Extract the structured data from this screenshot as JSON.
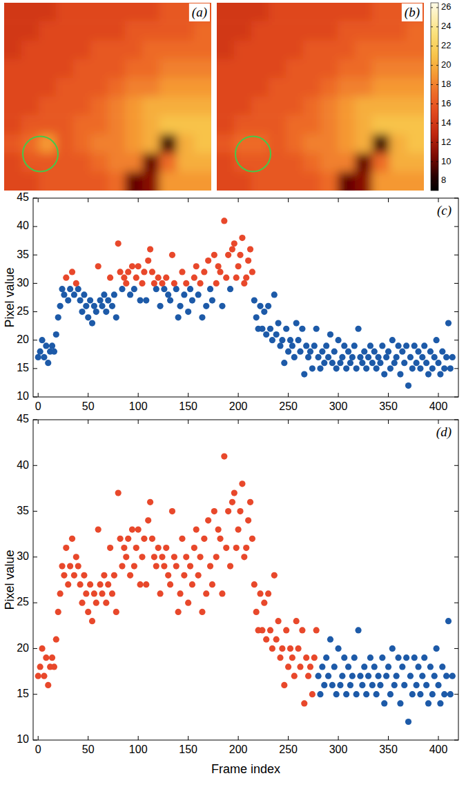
{
  "chart_data": [
    {
      "type": "heatmap",
      "label": "(a)",
      "cells": [
        [
          14,
          14,
          14,
          15,
          15,
          15,
          15,
          15,
          15,
          16,
          16,
          16
        ],
        [
          14,
          14,
          15,
          15,
          15,
          15,
          15,
          16,
          16,
          16,
          16,
          17
        ],
        [
          14,
          15,
          15,
          15,
          15,
          16,
          16,
          16,
          17,
          17,
          17,
          17
        ],
        [
          15,
          15,
          15,
          15,
          16,
          16,
          16,
          17,
          17,
          18,
          18,
          18
        ],
        [
          15,
          15,
          15,
          16,
          16,
          16,
          17,
          18,
          18,
          19,
          19,
          19
        ],
        [
          15,
          15,
          16,
          16,
          16,
          17,
          18,
          19,
          20,
          20,
          20,
          20
        ],
        [
          15,
          16,
          16,
          16,
          17,
          17,
          18,
          19,
          20,
          21,
          21,
          21
        ],
        [
          16,
          17,
          19,
          16,
          17,
          18,
          18,
          19,
          20,
          9,
          20,
          21
        ],
        [
          15,
          16,
          16,
          16,
          16,
          17,
          18,
          18,
          10,
          17,
          20,
          20
        ],
        [
          15,
          15,
          16,
          16,
          16,
          16,
          17,
          10,
          11,
          19,
          19,
          19
        ]
      ]
    },
    {
      "type": "heatmap",
      "label": "(b)",
      "cells": [
        [
          14,
          14,
          14,
          15,
          15,
          15,
          15,
          15,
          15,
          16,
          16,
          16
        ],
        [
          14,
          14,
          15,
          15,
          15,
          15,
          15,
          16,
          16,
          16,
          16,
          17
        ],
        [
          14,
          15,
          15,
          15,
          15,
          16,
          16,
          16,
          17,
          17,
          17,
          17
        ],
        [
          15,
          15,
          15,
          15,
          16,
          16,
          16,
          17,
          17,
          18,
          18,
          18
        ],
        [
          15,
          15,
          15,
          16,
          16,
          16,
          17,
          18,
          18,
          19,
          19,
          19
        ],
        [
          15,
          15,
          16,
          16,
          16,
          17,
          18,
          19,
          20,
          20,
          20,
          20
        ],
        [
          15,
          16,
          16,
          16,
          17,
          17,
          18,
          19,
          20,
          21,
          21,
          21
        ],
        [
          16,
          17,
          17,
          16,
          17,
          18,
          18,
          19,
          20,
          9,
          20,
          21
        ],
        [
          15,
          16,
          16,
          16,
          16,
          17,
          18,
          18,
          10,
          17,
          20,
          20
        ],
        [
          15,
          15,
          16,
          16,
          16,
          16,
          17,
          10,
          11,
          19,
          19,
          19
        ]
      ],
      "color_range": [
        7,
        26.5
      ],
      "color_ticks": [
        8,
        10,
        12,
        14,
        16,
        18,
        20,
        22,
        24,
        26
      ]
    },
    {
      "type": "scatter",
      "label": "(c)",
      "y_label": "Pixel value",
      "xlim": [
        -5,
        420
      ],
      "ylim": [
        10,
        45
      ],
      "xticks": [
        0,
        50,
        100,
        150,
        200,
        250,
        300,
        350,
        400
      ],
      "yticks": [
        10,
        15,
        20,
        25,
        30,
        35,
        40,
        45
      ],
      "series": [
        {
          "color": "#1d5aa8",
          "marker": "circle",
          "x": [
            0,
            2,
            4,
            6,
            8,
            10,
            12,
            14,
            16,
            18,
            20,
            22,
            24,
            26,
            30,
            32,
            36,
            40,
            42,
            44,
            46,
            48,
            50,
            52,
            54,
            56,
            58,
            62,
            64,
            66,
            68,
            70,
            74,
            76,
            78,
            84,
            92,
            96,
            102,
            108,
            118,
            122,
            126,
            130,
            132,
            138,
            140,
            142,
            146,
            150,
            152,
            154,
            160,
            164,
            168,
            172,
            174,
            184,
            192,
            216,
            218,
            220,
            222,
            224,
            226,
            228,
            230,
            232,
            234,
            236,
            238,
            240,
            242,
            244,
            246,
            248,
            250,
            252,
            254,
            256,
            258,
            260,
            262,
            264,
            266,
            268,
            270,
            272,
            274,
            276,
            278,
            280,
            282,
            284,
            286,
            288,
            290,
            292,
            294,
            296,
            298,
            300,
            302,
            304,
            306,
            308,
            310,
            312,
            314,
            316,
            318,
            320,
            322,
            324,
            326,
            328,
            330,
            332,
            334,
            336,
            338,
            340,
            342,
            344,
            346,
            348,
            350,
            352,
            354,
            356,
            358,
            360,
            362,
            364,
            366,
            368,
            370,
            372,
            374,
            376,
            378,
            380,
            382,
            384,
            386,
            388,
            390,
            392,
            394,
            396,
            398,
            400,
            402,
            404,
            406,
            408,
            410,
            412,
            414
          ],
          "values": [
            17,
            18,
            20,
            17,
            19,
            16,
            18,
            19,
            18,
            21,
            24,
            26,
            29,
            28,
            27,
            29,
            28,
            29,
            27,
            25,
            28,
            26,
            24,
            27,
            23,
            26,
            25,
            27,
            26,
            28,
            25,
            27,
            26,
            28,
            24,
            29,
            28,
            29,
            27,
            27,
            29,
            26,
            29,
            28,
            27,
            29,
            24,
            26,
            28,
            25,
            29,
            27,
            28,
            24,
            26,
            29,
            27,
            26,
            29,
            27,
            24,
            22,
            26,
            22,
            25,
            21,
            26,
            22,
            20,
            28,
            21,
            23,
            19,
            20,
            16,
            22,
            18,
            20,
            19,
            17,
            23,
            20,
            18,
            22,
            14,
            19,
            17,
            18,
            15,
            19,
            22,
            17,
            15,
            18,
            16,
            19,
            17,
            21,
            16,
            18,
            15,
            20,
            16,
            17,
            19,
            15,
            18,
            16,
            17,
            19,
            15,
            22,
            17,
            16,
            18,
            15,
            17,
            19,
            16,
            18,
            15,
            17,
            16,
            19,
            14,
            17,
            18,
            15,
            20,
            16,
            17,
            19,
            14,
            18,
            16,
            19,
            12,
            17,
            15,
            19,
            16,
            18,
            15,
            17,
            19,
            16,
            14,
            18,
            15,
            17,
            20,
            16,
            14,
            18,
            15,
            17,
            23,
            15,
            17
          ]
        },
        {
          "color": "#e8482b",
          "marker": "circle",
          "x": [
            28,
            34,
            38,
            60,
            72,
            80,
            82,
            86,
            88,
            90,
            94,
            98,
            100,
            104,
            106,
            110,
            112,
            114,
            116,
            120,
            124,
            128,
            134,
            136,
            144,
            148,
            156,
            158,
            162,
            166,
            170,
            176,
            178,
            180,
            182,
            186,
            188,
            190,
            194,
            196,
            198,
            200,
            202,
            204,
            206,
            208,
            210,
            212,
            214
          ],
          "values": [
            31,
            32,
            30,
            33,
            31,
            37,
            32,
            31,
            30,
            32,
            33,
            31,
            33,
            30,
            32,
            34,
            36,
            32,
            30,
            31,
            30,
            31,
            35,
            30,
            32,
            30,
            31,
            33,
            30,
            32,
            34,
            35,
            30,
            33,
            32,
            41,
            31,
            35,
            36,
            37,
            31,
            33,
            35,
            38,
            30,
            31,
            34,
            36,
            32
          ]
        }
      ]
    },
    {
      "type": "scatter",
      "label": "(d)",
      "y_label": "Pixel value",
      "x_label": "Frame index",
      "xlim": [
        -5,
        420
      ],
      "ylim": [
        10,
        45
      ],
      "xticks": [
        0,
        50,
        100,
        150,
        200,
        250,
        300,
        350,
        400
      ],
      "yticks": [
        10,
        15,
        20,
        25,
        30,
        35,
        40,
        45
      ],
      "series": [
        {
          "color": "#e8482b",
          "marker": "circle",
          "x": [
            0,
            2,
            4,
            6,
            8,
            10,
            12,
            14,
            16,
            18,
            20,
            22,
            24,
            26,
            28,
            30,
            32,
            34,
            36,
            38,
            40,
            42,
            44,
            46,
            48,
            50,
            52,
            54,
            56,
            58,
            60,
            62,
            64,
            66,
            68,
            70,
            72,
            74,
            76,
            78,
            80,
            82,
            84,
            86,
            88,
            90,
            92,
            94,
            96,
            98,
            100,
            102,
            104,
            106,
            108,
            110,
            112,
            114,
            116,
            118,
            120,
            122,
            124,
            126,
            128,
            130,
            132,
            134,
            136,
            138,
            140,
            142,
            144,
            146,
            148,
            150,
            152,
            154,
            156,
            158,
            160,
            162,
            164,
            166,
            168,
            170,
            172,
            174,
            176,
            178,
            180,
            182,
            184,
            186,
            188,
            190,
            192,
            194,
            196,
            198,
            200,
            202,
            204,
            206,
            208,
            210,
            212,
            214,
            216,
            218,
            220,
            222,
            224,
            226,
            228,
            230,
            232,
            234,
            236,
            238,
            240,
            242,
            244,
            246,
            248,
            250,
            252,
            254,
            256,
            258,
            260,
            262,
            264,
            266,
            268,
            270,
            272,
            274,
            276,
            278
          ],
          "values": [
            17,
            18,
            20,
            17,
            19,
            16,
            18,
            19,
            18,
            21,
            24,
            26,
            29,
            28,
            31,
            27,
            29,
            32,
            28,
            30,
            29,
            27,
            25,
            28,
            26,
            24,
            27,
            23,
            26,
            25,
            33,
            27,
            26,
            28,
            25,
            27,
            31,
            26,
            28,
            24,
            37,
            32,
            29,
            31,
            30,
            32,
            28,
            33,
            29,
            31,
            33,
            27,
            30,
            32,
            27,
            34,
            36,
            32,
            30,
            29,
            31,
            26,
            30,
            29,
            31,
            28,
            27,
            35,
            30,
            29,
            24,
            26,
            32,
            28,
            30,
            25,
            29,
            27,
            31,
            33,
            28,
            30,
            24,
            32,
            26,
            34,
            29,
            27,
            35,
            30,
            33,
            32,
            26,
            41,
            31,
            35,
            29,
            36,
            37,
            31,
            33,
            35,
            38,
            30,
            31,
            34,
            36,
            32,
            27,
            24,
            22,
            26,
            22,
            25,
            21,
            26,
            22,
            20,
            28,
            21,
            23,
            19,
            20,
            16,
            22,
            18,
            20,
            19,
            17,
            23,
            20,
            18,
            22,
            14,
            19,
            17,
            18,
            15,
            19,
            22
          ]
        },
        {
          "color": "#1d5aa8",
          "marker": "circle",
          "x": [
            280,
            282,
            284,
            286,
            288,
            290,
            292,
            294,
            296,
            298,
            300,
            302,
            304,
            306,
            308,
            310,
            312,
            314,
            316,
            318,
            320,
            322,
            324,
            326,
            328,
            330,
            332,
            334,
            336,
            338,
            340,
            342,
            344,
            346,
            348,
            350,
            352,
            354,
            356,
            358,
            360,
            362,
            364,
            366,
            368,
            370,
            372,
            374,
            376,
            378,
            380,
            382,
            384,
            386,
            388,
            390,
            392,
            394,
            396,
            398,
            400,
            402,
            404,
            406,
            408,
            410,
            412,
            414
          ],
          "values": [
            17,
            15,
            18,
            16,
            19,
            17,
            21,
            16,
            18,
            15,
            20,
            16,
            17,
            19,
            15,
            18,
            16,
            17,
            19,
            15,
            22,
            17,
            16,
            18,
            15,
            17,
            19,
            16,
            18,
            15,
            17,
            16,
            19,
            14,
            17,
            18,
            15,
            20,
            16,
            17,
            19,
            14,
            18,
            16,
            19,
            12,
            17,
            15,
            19,
            16,
            18,
            15,
            17,
            19,
            16,
            14,
            18,
            15,
            17,
            20,
            16,
            14,
            18,
            15,
            17,
            23,
            15,
            17
          ]
        }
      ]
    }
  ]
}
